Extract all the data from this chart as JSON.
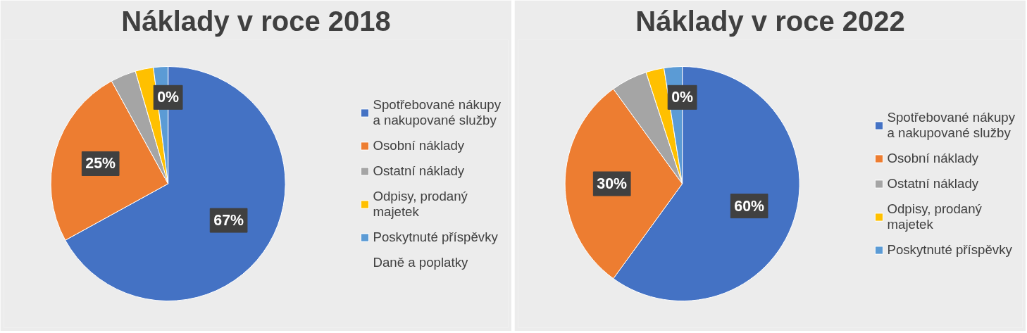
{
  "chart_data": [
    {
      "type": "pie",
      "title": "Náklady v roce 2018",
      "categories": [
        "Spotřebované nákupy\na nakupované služby",
        "Osobní náklady",
        "Ostatní náklady",
        "Odpisy, prodaný\nmajetek",
        "Poskytnuté příspěvky",
        "Daně a poplatky"
      ],
      "values": [
        67,
        25,
        3.5,
        2.5,
        2,
        0
      ],
      "colors": [
        "#4472c4",
        "#ed7d31",
        "#a5a5a5",
        "#ffc000",
        "#5b9bd5",
        "#70ad47"
      ],
      "value_labels": [
        "67%",
        "25%",
        null,
        null,
        null,
        "0%"
      ],
      "legend": "right"
    },
    {
      "type": "pie",
      "title": "Náklady v roce 2022",
      "categories": [
        "Spotřebované nákupy\na nakupované služby",
        "Osobní náklady",
        "Ostatní náklady",
        "Odpisy, prodaný\nmajetek",
        "Poskytnuté příspěvky",
        null
      ],
      "values": [
        60,
        30,
        5,
        2.5,
        2.5,
        0
      ],
      "colors": [
        "#4472c4",
        "#ed7d31",
        "#a5a5a5",
        "#ffc000",
        "#5b9bd5",
        "#70ad47"
      ],
      "value_labels": [
        "60%",
        "30%",
        null,
        null,
        null,
        "0%"
      ],
      "legend": "right"
    }
  ]
}
